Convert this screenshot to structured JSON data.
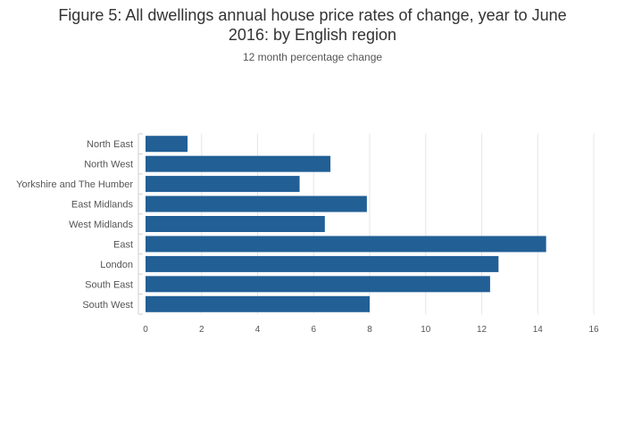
{
  "figure": {
    "title_line1": "Figure 5: All dwellings annual house price rates of change, year to June",
    "title_line2": "2016: by English region",
    "subtitle": "12 month percentage change"
  },
  "chart_data": {
    "type": "bar",
    "orientation": "horizontal",
    "title": "Figure 5: All dwellings annual house price rates of change, year to June 2016: by English region",
    "subtitle": "12 month percentage change",
    "xlabel": "",
    "ylabel": "",
    "categories": [
      "North East",
      "North West",
      "Yorkshire and The Humber",
      "East Midlands",
      "West Midlands",
      "East",
      "London",
      "South East",
      "South West"
    ],
    "values": [
      1.5,
      6.6,
      5.5,
      7.9,
      6.4,
      14.3,
      12.6,
      12.3,
      8.0
    ],
    "xlim": [
      0,
      16
    ],
    "xticks": [
      0,
      2,
      4,
      6,
      8,
      10,
      12,
      14,
      16
    ],
    "grid": true,
    "legend": "none",
    "bar_color": "#215f95",
    "grid_color": "#e6e6e6"
  }
}
